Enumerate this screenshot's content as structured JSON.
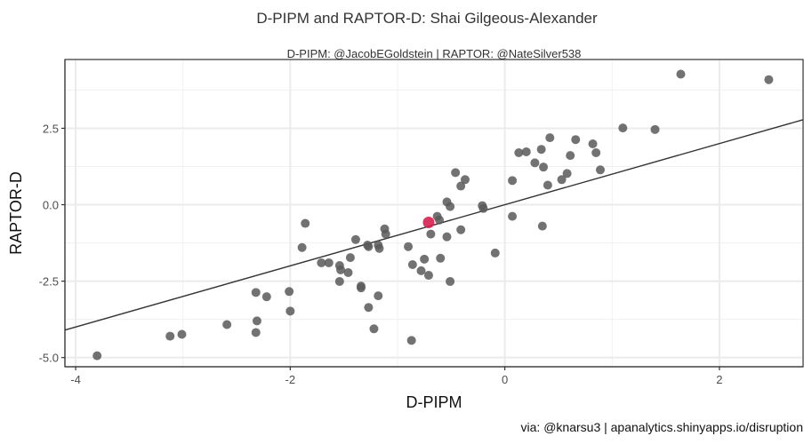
{
  "chart_data": {
    "type": "scatter",
    "title": "D-PIPM and RAPTOR-D: Shai Gilgeous-Alexander",
    "subtitle": "D-PIPM: @JacobEGoldstein | RAPTOR: @NateSilver538",
    "caption": "via: @knarsu3 | apanalytics.shinyapps.io/disruption",
    "xlabel": "D-PIPM",
    "ylabel": "RAPTOR-D",
    "xlim": [
      -4.1,
      2.78
    ],
    "ylim": [
      -5.3,
      4.75
    ],
    "x_ticks": [
      -4,
      -2,
      0,
      2
    ],
    "x_tick_labels": [
      "-4",
      "-2",
      "0",
      "2"
    ],
    "y_ticks": [
      2.5,
      0.0,
      -2.5,
      -5.0
    ],
    "y_tick_labels": [
      "2.5",
      "0.0",
      "-2.5",
      "-5.0"
    ],
    "grid": true,
    "point_color": "#595959",
    "highlight_color": "#d6204f",
    "trendline": {
      "slope": 1.0,
      "intercept": 0.0,
      "color": "#333333"
    },
    "highlight": {
      "name": "Shai Gilgeous-Alexander",
      "x": -0.71,
      "y": -0.58
    },
    "points": [
      [
        -3.8,
        -4.94
      ],
      [
        -3.12,
        -4.3
      ],
      [
        -3.01,
        -4.24
      ],
      [
        -2.59,
        -3.92
      ],
      [
        -2.32,
        -4.18
      ],
      [
        -2.31,
        -3.8
      ],
      [
        -2.32,
        -2.87
      ],
      [
        -2.22,
        -3.01
      ],
      [
        -2.01,
        -2.84
      ],
      [
        -2.0,
        -3.48
      ],
      [
        -1.86,
        -0.61
      ],
      [
        -1.89,
        -1.4
      ],
      [
        -1.71,
        -1.9
      ],
      [
        -1.64,
        -1.9
      ],
      [
        -1.54,
        -1.99
      ],
      [
        -1.53,
        -2.13
      ],
      [
        -1.46,
        -2.22
      ],
      [
        -1.44,
        -1.73
      ],
      [
        -1.54,
        -2.51
      ],
      [
        -1.39,
        -1.14
      ],
      [
        -1.28,
        -1.32
      ],
      [
        -1.27,
        -1.37
      ],
      [
        -1.18,
        -1.32
      ],
      [
        -1.17,
        -1.43
      ],
      [
        -1.12,
        -0.79
      ],
      [
        -1.11,
        -0.96
      ],
      [
        -1.34,
        -2.72
      ],
      [
        -1.34,
        -2.66
      ],
      [
        -1.18,
        -2.98
      ],
      [
        -1.27,
        -3.36
      ],
      [
        -1.22,
        -4.06
      ],
      [
        -0.87,
        -4.44
      ],
      [
        -0.9,
        -1.37
      ],
      [
        -0.86,
        -1.96
      ],
      [
        -0.75,
        -1.78
      ],
      [
        -0.6,
        -1.75
      ],
      [
        -0.78,
        -2.16
      ],
      [
        -0.71,
        -2.31
      ],
      [
        -0.51,
        -2.51
      ],
      [
        -0.09,
        -1.58
      ],
      [
        -0.69,
        -0.96
      ],
      [
        -0.54,
        -1.05
      ],
      [
        -0.41,
        -0.82
      ],
      [
        -0.63,
        -0.38
      ],
      [
        -0.61,
        -0.5
      ],
      [
        -0.54,
        0.09
      ],
      [
        -0.51,
        -0.06
      ],
      [
        -0.46,
        1.05
      ],
      [
        -0.37,
        0.82
      ],
      [
        -0.41,
        0.61
      ],
      [
        -0.21,
        -0.03
      ],
      [
        -0.2,
        -0.12
      ],
      [
        0.07,
        0.79
      ],
      [
        0.07,
        -0.38
      ],
      [
        0.35,
        -0.7
      ],
      [
        0.4,
        0.64
      ],
      [
        0.13,
        1.7
      ],
      [
        0.2,
        1.73
      ],
      [
        0.34,
        1.81
      ],
      [
        0.42,
        2.19
      ],
      [
        0.28,
        1.37
      ],
      [
        0.36,
        1.23
      ],
      [
        0.53,
        0.82
      ],
      [
        0.58,
        1.02
      ],
      [
        0.61,
        1.61
      ],
      [
        0.66,
        2.13
      ],
      [
        0.82,
        1.99
      ],
      [
        0.85,
        1.7
      ],
      [
        0.89,
        1.14
      ],
      [
        1.1,
        2.51
      ],
      [
        1.4,
        2.46
      ],
      [
        1.64,
        4.27
      ],
      [
        2.46,
        4.09
      ]
    ]
  }
}
